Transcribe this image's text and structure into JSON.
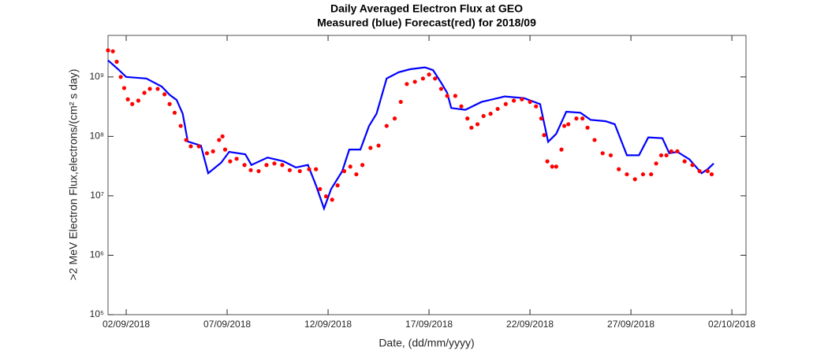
{
  "chart_data": {
    "type": "line",
    "title": "Daily Averaged Electron Flux at GEO",
    "subtitle": "Measured (blue) Forecast(red) for 2018/09",
    "x_label": "Date, (dd/mm/yyyy)",
    "y_label": ">2 MeV Electron Flux,electrons/(cm² s day)",
    "yscale": "log",
    "xlim": [
      1.1,
      32.7
    ],
    "ylim": [
      100000,
      5000000000
    ],
    "xticks": [
      {
        "value": 2,
        "label": "02/09/2018"
      },
      {
        "value": 7,
        "label": "07/09/2018"
      },
      {
        "value": 12,
        "label": "12/09/2018"
      },
      {
        "value": 17,
        "label": "17/09/2018"
      },
      {
        "value": 22,
        "label": "22/09/2018"
      },
      {
        "value": 27,
        "label": "27/09/2018"
      },
      {
        "value": 32,
        "label": "02/10/2018"
      }
    ],
    "yticks": [
      {
        "value": 100000,
        "label": "10⁵"
      },
      {
        "value": 1000000,
        "label": "10⁶"
      },
      {
        "value": 10000000,
        "label": "10⁷"
      },
      {
        "value": 100000000,
        "label": "10⁸"
      },
      {
        "value": 1000000000,
        "label": "10⁹"
      }
    ],
    "series": [
      {
        "name": "Measured",
        "color": "#0000ff",
        "style": "line",
        "x": [
          1.1,
          1.6,
          2,
          3,
          3.76,
          4.15,
          4.5,
          4.8,
          5.05,
          5.7,
          6.06,
          6.7,
          7.1,
          7.9,
          8.2,
          9.0,
          9.8,
          10.4,
          11,
          11.4,
          11.8,
          12.15,
          12.7,
          13.05,
          13.6,
          14.03,
          14.4,
          14.9,
          15.5,
          16.06,
          16.8,
          17.2,
          17.6,
          17.9,
          18.1,
          18.8,
          19.6,
          20.75,
          21.7,
          22.5,
          22.9,
          23.3,
          23.8,
          24.5,
          25.0,
          25.75,
          26.2,
          26.8,
          27.4,
          27.86,
          28.56,
          28.9,
          29.3,
          29.9,
          30.5,
          30.8,
          31.1
        ],
        "values": [
          1900000000,
          1350000000,
          1000000000,
          940000000,
          690000000,
          500000000,
          410000000,
          240000000,
          82000000,
          70000000,
          24000000,
          36000000,
          55000000,
          50000000,
          33000000,
          44000000,
          38000000,
          30000000,
          33000000,
          15000000,
          6100000,
          13000000,
          26000000,
          60000000,
          60000000,
          150000000,
          240000000,
          940000000,
          1200000000,
          1350000000,
          1450000000,
          1300000000,
          800000000,
          540000000,
          300000000,
          280000000,
          380000000,
          470000000,
          440000000,
          350000000,
          81000000,
          110000000,
          260000000,
          250000000,
          190000000,
          180000000,
          160000000,
          48000000,
          48000000,
          96000000,
          93000000,
          52000000,
          55000000,
          41000000,
          24000000,
          28000000,
          35000000
        ]
      },
      {
        "name": "Forecast",
        "color": "#ff0000",
        "style": "dots",
        "x": [
          1.1,
          1.34,
          1.53,
          1.73,
          1.9,
          2.08,
          2.3,
          2.6,
          2.9,
          3.17,
          3.56,
          3.9,
          4.15,
          4.4,
          4.7,
          4.97,
          5.2,
          5.6,
          6.0,
          6.3,
          6.6,
          6.77,
          6.9,
          7.15,
          7.47,
          7.86,
          8.17,
          8.56,
          8.95,
          9.34,
          9.73,
          10.1,
          10.6,
          11.06,
          11.4,
          11.6,
          11.9,
          12.2,
          12.47,
          12.8,
          13.1,
          13.4,
          13.7,
          14.1,
          14.5,
          14.9,
          15.3,
          15.6,
          15.9,
          16.3,
          16.7,
          17.0,
          17.3,
          17.6,
          17.9,
          18.3,
          18.6,
          18.9,
          19.1,
          19.4,
          19.7,
          20.05,
          20.4,
          20.8,
          21.2,
          21.6,
          22.0,
          22.3,
          22.56,
          22.7,
          22.86,
          23.1,
          23.3,
          23.56,
          23.7,
          23.9,
          24.3,
          24.6,
          24.85,
          25.2,
          25.6,
          26.0,
          26.4,
          26.8,
          27.2,
          27.6,
          28.0,
          28.25,
          28.5,
          28.76,
          29.0,
          29.3,
          29.66,
          30.05,
          30.4,
          30.8,
          31.0
        ],
        "values": [
          2800000000,
          2700000000,
          1800000000,
          1000000000,
          650000000,
          420000000,
          350000000,
          400000000,
          540000000,
          630000000,
          630000000,
          510000000,
          350000000,
          250000000,
          150000000,
          87000000,
          68000000,
          68000000,
          52000000,
          56000000,
          87000000,
          100000000,
          60000000,
          38000000,
          42000000,
          33000000,
          27000000,
          26000000,
          33000000,
          35000000,
          33000000,
          27000000,
          26000000,
          28000000,
          28000000,
          13000000,
          9800000,
          8600000,
          15000000,
          26000000,
          31000000,
          23000000,
          33000000,
          64000000,
          70000000,
          150000000,
          200000000,
          380000000,
          760000000,
          830000000,
          940000000,
          1100000000,
          940000000,
          630000000,
          480000000,
          480000000,
          320000000,
          200000000,
          140000000,
          160000000,
          220000000,
          240000000,
          290000000,
          350000000,
          400000000,
          420000000,
          380000000,
          320000000,
          200000000,
          105000000,
          38000000,
          31000000,
          31000000,
          60000000,
          150000000,
          160000000,
          200000000,
          200000000,
          140000000,
          87000000,
          52000000,
          48000000,
          28000000,
          23000000,
          19000000,
          23000000,
          23000000,
          35000000,
          48000000,
          48000000,
          56000000,
          56000000,
          38000000,
          33000000,
          26000000,
          26000000,
          23000000
        ]
      }
    ]
  }
}
